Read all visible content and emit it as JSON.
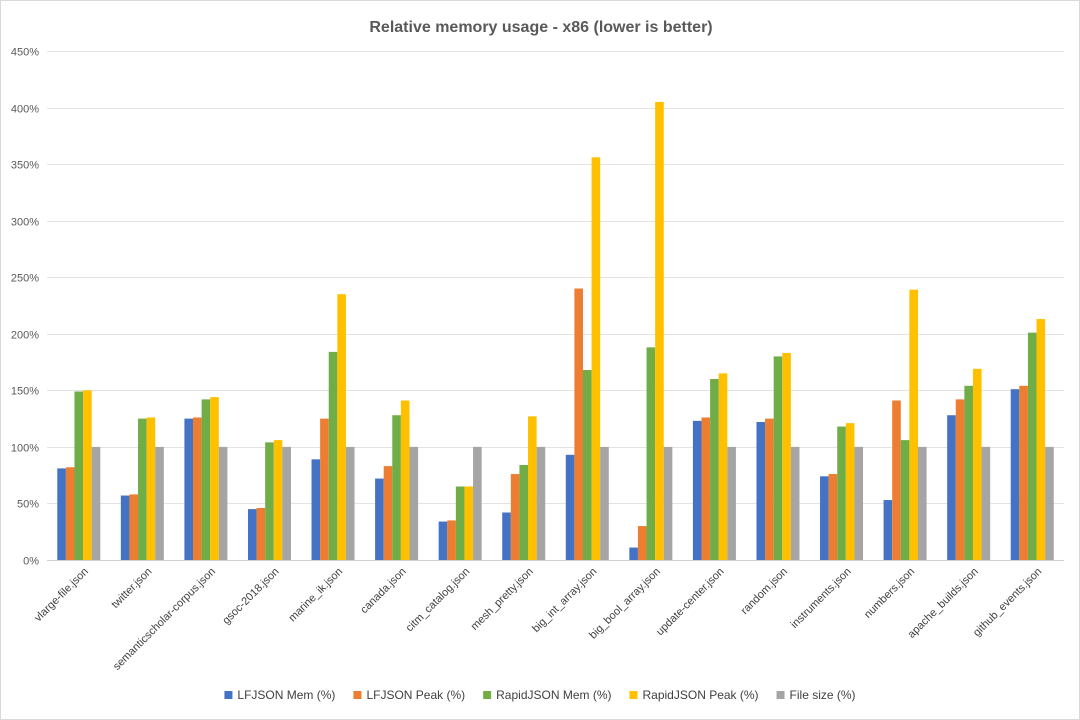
{
  "chart_data": {
    "type": "bar",
    "title": "Relative memory usage - x86 (lower is better)",
    "xlabel": "",
    "ylabel": "",
    "ylim": [
      0,
      450
    ],
    "y_tick_step": 50,
    "y_tick_suffix": "%",
    "grid": true,
    "legend_position": "bottom",
    "categories": [
      "vlarge-file.json",
      "twitter.json",
      "semanticscholar-corpus.json",
      "gsoc-2018.json",
      "marine_ik.json",
      "canada.json",
      "citm_catalog.json",
      "mesh_pretty.json",
      "big_int_array.json",
      "big_bool_array.json",
      "update-center.json",
      "random.json",
      "instruments.json",
      "numbers.json",
      "apache_builds.json",
      "github_events.json"
    ],
    "series": [
      {
        "name": "LFJSON Mem (%)",
        "color": "#4472C4",
        "values": [
          81,
          57,
          125,
          45,
          89,
          72,
          34,
          42,
          93,
          11,
          123,
          122,
          74,
          53,
          128,
          151
        ]
      },
      {
        "name": "LFJSON Peak (%)",
        "color": "#ED7D31",
        "values": [
          82,
          58,
          126,
          46,
          125,
          83,
          35,
          76,
          240,
          30,
          126,
          125,
          76,
          141,
          142,
          154
        ]
      },
      {
        "name": "RapidJSON Mem (%)",
        "color": "#70AD47",
        "values": [
          149,
          125,
          142,
          104,
          184,
          128,
          65,
          84,
          168,
          188,
          160,
          180,
          118,
          106,
          154,
          201
        ]
      },
      {
        "name": "RapidJSON Peak (%)",
        "color": "#FFC000",
        "values": [
          150,
          126,
          144,
          106,
          235,
          141,
          65,
          127,
          356,
          405,
          165,
          183,
          121,
          239,
          169,
          213
        ]
      },
      {
        "name": "File size (%)",
        "color": "#A5A5A5",
        "values": [
          100,
          100,
          100,
          100,
          100,
          100,
          100,
          100,
          100,
          100,
          100,
          100,
          100,
          100,
          100,
          100
        ]
      }
    ]
  }
}
